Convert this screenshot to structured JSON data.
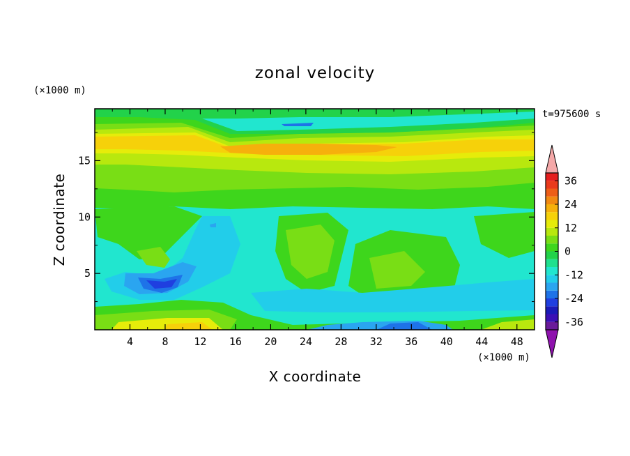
{
  "chart_data": {
    "type": "heatmap",
    "title": "zonal velocity",
    "xlabel": "X coordinate",
    "ylabel": "Z coordinate",
    "x_unit": "(×1000 m)",
    "z_unit": "(×1000 m)",
    "time_label": "t=975600 s",
    "xlim": [
      0,
      50
    ],
    "zlim": [
      0,
      19.6
    ],
    "x_ticks": [
      4,
      8,
      12,
      16,
      20,
      24,
      28,
      32,
      36,
      40,
      44,
      48
    ],
    "z_ticks": [
      5,
      10,
      15
    ],
    "colorbar": {
      "levels": [
        -40,
        -36,
        -32,
        -28,
        -24,
        -20,
        -16,
        -12,
        -8,
        -4,
        0,
        4,
        8,
        12,
        16,
        20,
        24,
        28,
        32,
        36,
        40
      ],
      "tick_labels": [
        "36",
        "24",
        "12",
        "0",
        "-12",
        "-24",
        "-36"
      ],
      "tick_values": [
        36,
        24,
        12,
        0,
        -12,
        -24,
        -36
      ],
      "colors": [
        "#6a1b9a",
        "#3b0fb5",
        "#1a1ab8",
        "#1f3fe0",
        "#1e73e8",
        "#2aa5f0",
        "#22cdea",
        "#21e6cf",
        "#1fe08f",
        "#22d24a",
        "#3ed61c",
        "#79de15",
        "#b8e80e",
        "#e6ec0a",
        "#f6d10a",
        "#f6b00c",
        "#f28a12",
        "#ee5e18",
        "#ea3a1c",
        "#e61e1e"
      ],
      "extend_low_color": "#8e12ad",
      "extend_high_color": "#f4a8a8"
    },
    "field_description_bands": [
      {
        "z_range": [
          0,
          1
        ],
        "value_approx": 10
      },
      {
        "z_range": [
          1,
          3
        ],
        "value_approx": -6
      },
      {
        "z_range": [
          3,
          6
        ],
        "value_approx": -10
      },
      {
        "z_range": [
          6,
          11
        ],
        "value_approx": -4
      },
      {
        "z_range": [
          11,
          14
        ],
        "value_approx": 4
      },
      {
        "z_range": [
          14,
          18
        ],
        "value_approx": 14
      },
      {
        "z_range": [
          18,
          19.6
        ],
        "value_approx": -2
      }
    ]
  }
}
